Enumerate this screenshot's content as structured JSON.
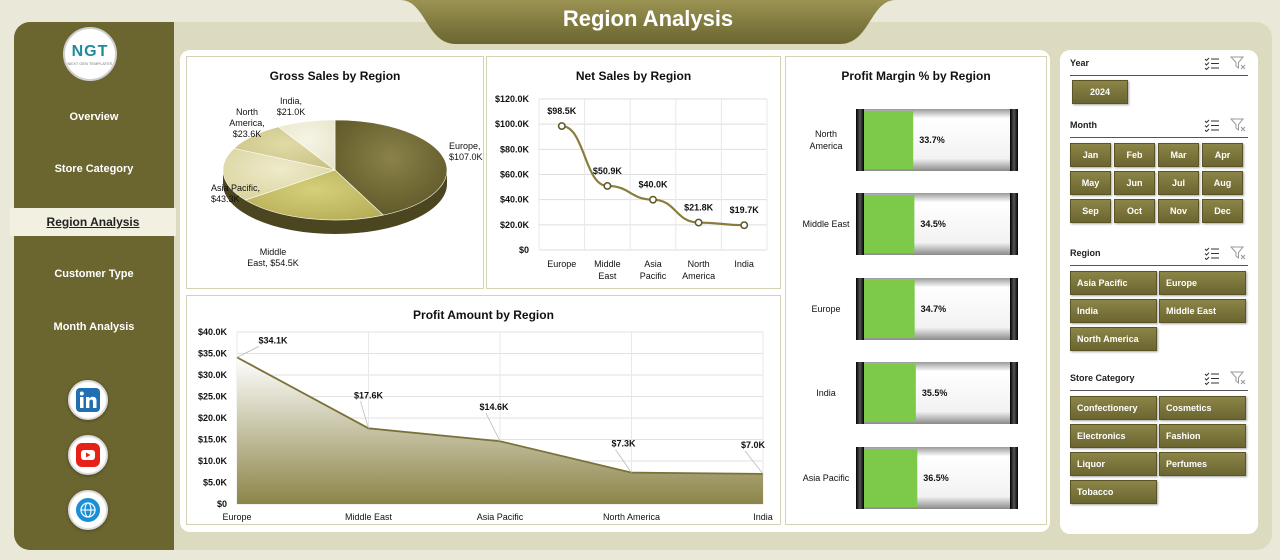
{
  "header": {
    "title": "Region Analysis"
  },
  "logo": {
    "text": "NGT",
    "subtext": "NEXT GEN TEMPLATES"
  },
  "sidebar": {
    "items": [
      {
        "label": "Overview"
      },
      {
        "label": "Store Category"
      },
      {
        "label": "Region Analysis",
        "active": true
      },
      {
        "label": "Customer Type"
      },
      {
        "label": "Month Analysis"
      }
    ],
    "social": [
      "linkedin-icon",
      "youtube-icon",
      "globe-icon"
    ]
  },
  "colors": {
    "sidebar": "#6b6530",
    "accent": "#8c8548",
    "bar_fill": "#7dc94a",
    "frame": "#dcdbbf"
  },
  "chart_data": [
    {
      "type": "pie",
      "title": "Gross Sales by Region",
      "categories": [
        "Europe",
        "Middle East",
        "Asia Pacific",
        "North America",
        "India"
      ],
      "values": [
        107.0,
        54.5,
        43.3,
        23.6,
        21.0
      ],
      "data_labels": [
        "Europe, $107.0K",
        "Middle East, $54.5K",
        "Asia Pacific, $43.3K",
        "North America, $23.6K",
        "India, $21.0K"
      ]
    },
    {
      "type": "line",
      "title": "Net Sales by Region",
      "categories": [
        "Europe",
        "Middle East",
        "Asia Pacific",
        "North America",
        "India"
      ],
      "values": [
        98.5,
        50.9,
        40.0,
        21.8,
        19.7
      ],
      "data_labels": [
        "$98.5K",
        "$50.9K",
        "$40.0K",
        "$21.8K",
        "$19.7K"
      ],
      "yticks": [
        "$0",
        "$20.0K",
        "$40.0K",
        "$60.0K",
        "$80.0K",
        "$100.0K",
        "$120.0K"
      ],
      "ylim": [
        0,
        120
      ],
      "grid": true
    },
    {
      "type": "area",
      "title": "Profit Amount by Region",
      "categories": [
        "Europe",
        "Middle East",
        "Asia Pacific",
        "North America",
        "India"
      ],
      "values": [
        34.1,
        17.6,
        14.6,
        7.3,
        7.0
      ],
      "data_labels": [
        "$34.1K",
        "$17.6K",
        "$14.6K",
        "$7.3K",
        "$7.0K"
      ],
      "yticks": [
        "$0",
        "$5.0K",
        "$10.0K",
        "$15.0K",
        "$20.0K",
        "$25.0K",
        "$30.0K",
        "$35.0K",
        "$40.0K"
      ],
      "ylim": [
        0,
        40
      ],
      "grid": true
    },
    {
      "type": "bar",
      "title": "Profit Margin % by Region",
      "categories": [
        "North America",
        "Middle East",
        "Europe",
        "India",
        "Asia Pacific"
      ],
      "category_lines": [
        [
          "North",
          "America"
        ],
        [
          "Middle East"
        ],
        [
          "Europe"
        ],
        [
          "India"
        ],
        [
          "Asia Pacific"
        ]
      ],
      "values": [
        33.7,
        34.5,
        34.7,
        35.5,
        36.5
      ],
      "data_labels": [
        "33.7%",
        "34.5%",
        "34.7%",
        "35.5%",
        "36.5%"
      ]
    }
  ],
  "slicers": {
    "year": {
      "label": "Year",
      "options": [
        "2024"
      ]
    },
    "month": {
      "label": "Month",
      "options": [
        "Jan",
        "Feb",
        "Mar",
        "Apr",
        "May",
        "Jun",
        "Jul",
        "Aug",
        "Sep",
        "Oct",
        "Nov",
        "Dec"
      ]
    },
    "region": {
      "label": "Region",
      "options": [
        "Asia Pacific",
        "Europe",
        "India",
        "Middle East",
        "North America"
      ]
    },
    "store_category": {
      "label": "Store Category",
      "options": [
        "Confectionery",
        "Cosmetics",
        "Electronics",
        "Fashion",
        "Liquor",
        "Perfumes",
        "Tobacco"
      ]
    }
  }
}
